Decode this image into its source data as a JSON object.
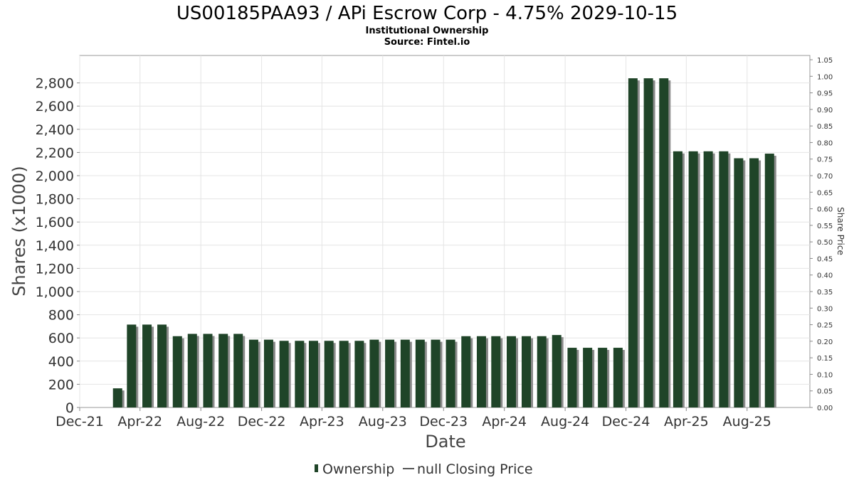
{
  "chart_data": {
    "type": "bar",
    "title": "US00185PAA93 / APi Escrow Corp - 4.75% 2029-10-15",
    "subtitle_lines": [
      "Institutional Ownership",
      "Source: Fintel.io"
    ],
    "xlabel": "Date",
    "ylabel": "Shares (x1000)",
    "y2label": "Share Price",
    "ylim": [
      0,
      3000
    ],
    "y2lim": [
      0,
      1.05
    ],
    "grid": true,
    "legend_position": "bottom-center",
    "x_range": [
      "2021-12-01",
      "2025-12-05"
    ],
    "x_tick_dates": [
      "2021-12-01",
      "2022-04-01",
      "2022-08-01",
      "2022-12-01",
      "2023-04-01",
      "2023-08-01",
      "2023-12-01",
      "2024-04-01",
      "2024-08-01",
      "2024-12-01",
      "2025-04-01",
      "2025-08-01"
    ],
    "x_tick_labels": [
      "Dec-21",
      "Apr-22",
      "Aug-22",
      "Dec-22",
      "Apr-23",
      "Aug-23",
      "Dec-23",
      "Apr-24",
      "Aug-24",
      "Dec-24",
      "Apr-25",
      "Aug-25"
    ],
    "y_ticks": [
      0,
      200,
      400,
      600,
      800,
      1000,
      1200,
      1400,
      1600,
      1800,
      2000,
      2200,
      2400,
      2600,
      2800
    ],
    "y_tick_labels": [
      "0",
      "200",
      "400",
      "600",
      "800",
      "1,000",
      "1,200",
      "1,400",
      "1,600",
      "1,800",
      "2,000",
      "2,200",
      "2,400",
      "2,600",
      "2,800"
    ],
    "y2_ticks": [
      0,
      0.05,
      0.1,
      0.15,
      0.2,
      0.25,
      0.3,
      0.35,
      0.4,
      0.45,
      0.5,
      0.55,
      0.6,
      0.65,
      0.7,
      0.75,
      0.8,
      0.85,
      0.9,
      0.95,
      1.0,
      1.05
    ],
    "y2_tick_labels": [
      "0.00",
      "0.05",
      "0.10",
      "0.15",
      "0.20",
      "0.25",
      "0.30",
      "0.35",
      "0.40",
      "0.45",
      "0.50",
      "0.55",
      "0.60",
      "0.65",
      "0.70",
      "0.75",
      "0.80",
      "0.85",
      "0.90",
      "0.95",
      "1.00",
      "1.05"
    ],
    "series": [
      {
        "name": "Ownership",
        "color": "#1f4428",
        "x": [
          "2022-02-15",
          "2022-03-15",
          "2022-04-15",
          "2022-05-15",
          "2022-06-15",
          "2022-07-15",
          "2022-08-15",
          "2022-09-15",
          "2022-10-15",
          "2022-11-15",
          "2022-12-15",
          "2023-01-15",
          "2023-02-15",
          "2023-03-15",
          "2023-04-15",
          "2023-05-15",
          "2023-06-15",
          "2023-07-15",
          "2023-08-15",
          "2023-09-15",
          "2023-10-15",
          "2023-11-15",
          "2023-12-15",
          "2024-01-15",
          "2024-02-15",
          "2024-03-15",
          "2024-04-15",
          "2024-05-15",
          "2024-06-15",
          "2024-07-15",
          "2024-08-15",
          "2024-09-15",
          "2024-10-15",
          "2024-11-15",
          "2024-12-15",
          "2025-01-15",
          "2025-02-15",
          "2025-03-15",
          "2025-04-15",
          "2025-05-15",
          "2025-06-15",
          "2025-07-15",
          "2025-08-15",
          "2025-09-15"
        ],
        "values": [
          165,
          715,
          715,
          715,
          615,
          635,
          635,
          635,
          635,
          585,
          585,
          575,
          575,
          575,
          575,
          575,
          575,
          585,
          585,
          585,
          585,
          585,
          585,
          615,
          615,
          615,
          615,
          615,
          615,
          625,
          515,
          515,
          515,
          515,
          2840,
          2840,
          2840,
          2210,
          2210,
          2210,
          2210,
          2150,
          2150,
          2190
        ]
      },
      {
        "name": "null Closing Price",
        "color": "#555555",
        "values": []
      }
    ]
  }
}
